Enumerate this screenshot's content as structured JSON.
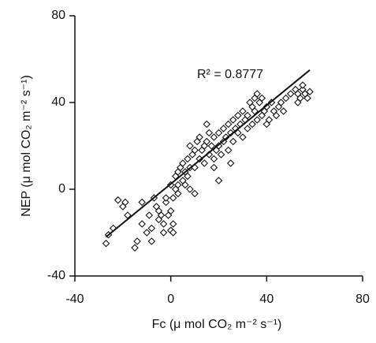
{
  "chart_data": {
    "type": "scatter",
    "x_label": "Fc (μ mol CO₂ m⁻² s⁻¹)",
    "y_label": "NEP (μ mol CO₂ m⁻² s⁻¹)",
    "annotation": "R² = 0.8777",
    "xlim": [
      -40,
      80
    ],
    "ylim": [
      -40,
      80
    ],
    "xticks": [
      -40,
      0,
      40,
      80
    ],
    "yticks": [
      -40,
      0,
      40,
      80
    ],
    "grid": false,
    "color": "#111111",
    "x": [
      -27,
      -26,
      -24,
      -22,
      -20,
      -19,
      -18,
      -15,
      -14,
      -12,
      -10,
      -9,
      -8,
      -7,
      -6,
      -5,
      -5,
      -4,
      -3,
      -3,
      -2,
      -1,
      0,
      0,
      1,
      1,
      0,
      1,
      2,
      2,
      3,
      3,
      4,
      5,
      5,
      6,
      6,
      7,
      7,
      8,
      8,
      9,
      10,
      10,
      11,
      12,
      12,
      13,
      14,
      14,
      15,
      16,
      16,
      17,
      18,
      18,
      19,
      20,
      20,
      21,
      22,
      22,
      23,
      24,
      24,
      25,
      26,
      26,
      27,
      28,
      28,
      29,
      30,
      30,
      31,
      32,
      32,
      33,
      34,
      34,
      35,
      35,
      36,
      36,
      37,
      38,
      38,
      39,
      40,
      40,
      41,
      42,
      43,
      44,
      45,
      46,
      47,
      48,
      50,
      52,
      53,
      54,
      55,
      56,
      57,
      58,
      53,
      55,
      10,
      8,
      -2,
      3,
      15,
      18,
      20,
      25,
      -8,
      -12
    ],
    "values": [
      -25,
      -21,
      -18,
      -5,
      -8,
      -6,
      -12,
      -27,
      -24,
      -6,
      -20,
      -12,
      -18,
      -4,
      -8,
      -14,
      -10,
      -12,
      -16,
      -20,
      -6,
      -12,
      -10,
      -19,
      -16,
      -20,
      2,
      -4,
      0,
      6,
      8,
      -2,
      10,
      4,
      12,
      8,
      2,
      14,
      6,
      10,
      20,
      16,
      10,
      18,
      22,
      14,
      24,
      18,
      20,
      12,
      22,
      16,
      26,
      20,
      24,
      14,
      18,
      26,
      20,
      16,
      28,
      22,
      24,
      18,
      30,
      26,
      22,
      32,
      28,
      34,
      26,
      30,
      36,
      24,
      32,
      34,
      28,
      40,
      38,
      30,
      42,
      36,
      44,
      32,
      40,
      42,
      34,
      36,
      38,
      30,
      32,
      40,
      36,
      34,
      38,
      40,
      36,
      42,
      44,
      46,
      44,
      42,
      46,
      44,
      42,
      45,
      40,
      48,
      -2,
      0,
      -4,
      2,
      30,
      10,
      4,
      12,
      -24,
      -16
    ],
    "trend_line": {
      "x": [
        -27,
        58
      ],
      "y": [
        -22,
        55
      ]
    }
  }
}
